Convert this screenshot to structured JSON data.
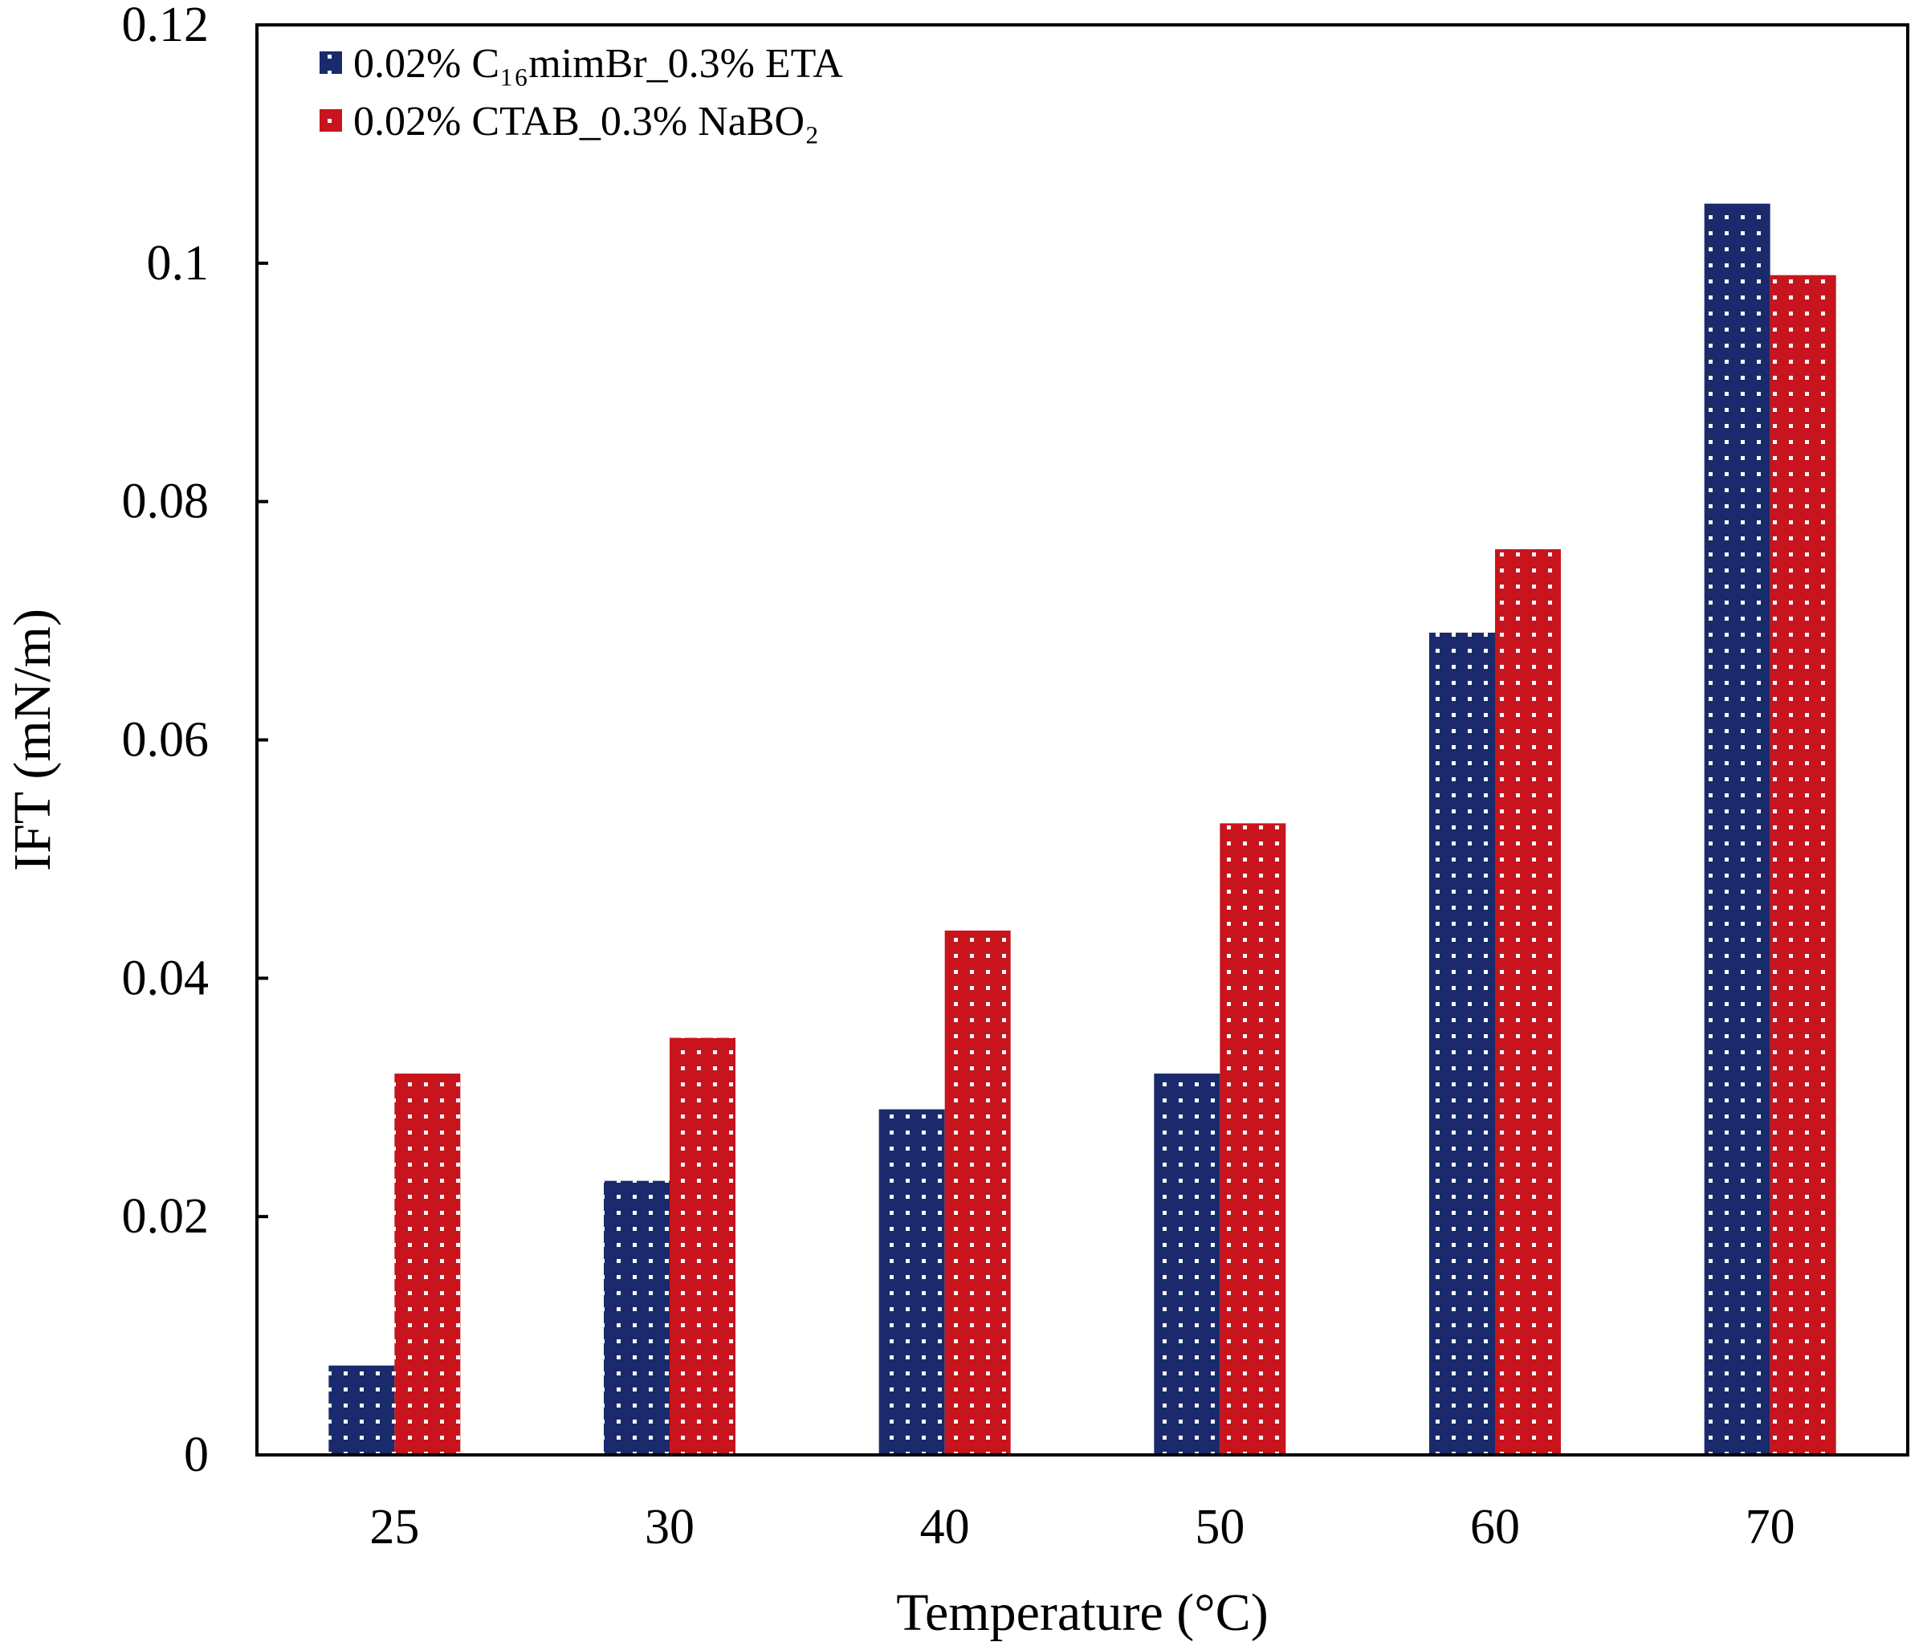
{
  "chart_data": {
    "type": "bar",
    "title": "",
    "xlabel": "Temperature (°C)",
    "ylabel": "IFT (mN/m)",
    "ylim": [
      0,
      0.12
    ],
    "yticks": [
      "0",
      "0.02",
      "0.04",
      "0.06",
      "0.08",
      "0.1",
      "0.12"
    ],
    "ytick_values": [
      0,
      0.02,
      0.04,
      0.06,
      0.08,
      0.1,
      0.12
    ],
    "categories": [
      "25",
      "30",
      "40",
      "50",
      "60",
      "70"
    ],
    "grid": false,
    "legend_position": "top-left",
    "series": [
      {
        "name": "0.02% C₁₆mimBr_0.3%  ETA",
        "color": "#1a2a6c",
        "pattern": "dotted",
        "values": [
          0.0075,
          0.023,
          0.029,
          0.032,
          0.069,
          0.105
        ]
      },
      {
        "name": "0.02% CTAB_0.3%  NaBO₂",
        "color": "#c8141c",
        "pattern": "dotted",
        "values": [
          0.032,
          0.035,
          0.044,
          0.053,
          0.076,
          0.099
        ]
      }
    ]
  }
}
